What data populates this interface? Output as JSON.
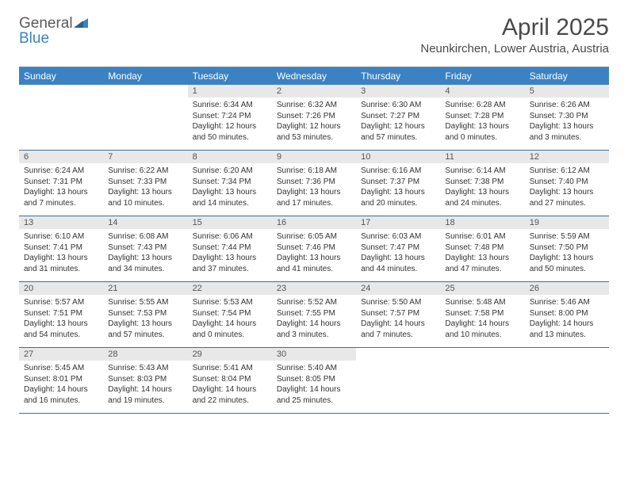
{
  "logo": {
    "text_dark": "General",
    "text_blue": "Blue"
  },
  "title": "April 2025",
  "location": "Neunkirchen, Lower Austria, Austria",
  "day_headers": [
    "Sunday",
    "Monday",
    "Tuesday",
    "Wednesday",
    "Thursday",
    "Friday",
    "Saturday"
  ],
  "colors": {
    "header_bg": "#3b82c4",
    "header_text": "#ffffff",
    "daynum_bg": "#e8e8e8",
    "week_border": "#3b6fa0",
    "body_text": "#333333"
  },
  "weeks": [
    [
      {
        "n": "",
        "empty": true
      },
      {
        "n": "",
        "empty": true
      },
      {
        "n": "1",
        "sunrise": "Sunrise: 6:34 AM",
        "sunset": "Sunset: 7:24 PM",
        "daylight": "Daylight: 12 hours and 50 minutes."
      },
      {
        "n": "2",
        "sunrise": "Sunrise: 6:32 AM",
        "sunset": "Sunset: 7:26 PM",
        "daylight": "Daylight: 12 hours and 53 minutes."
      },
      {
        "n": "3",
        "sunrise": "Sunrise: 6:30 AM",
        "sunset": "Sunset: 7:27 PM",
        "daylight": "Daylight: 12 hours and 57 minutes."
      },
      {
        "n": "4",
        "sunrise": "Sunrise: 6:28 AM",
        "sunset": "Sunset: 7:28 PM",
        "daylight": "Daylight: 13 hours and 0 minutes."
      },
      {
        "n": "5",
        "sunrise": "Sunrise: 6:26 AM",
        "sunset": "Sunset: 7:30 PM",
        "daylight": "Daylight: 13 hours and 3 minutes."
      }
    ],
    [
      {
        "n": "6",
        "sunrise": "Sunrise: 6:24 AM",
        "sunset": "Sunset: 7:31 PM",
        "daylight": "Daylight: 13 hours and 7 minutes."
      },
      {
        "n": "7",
        "sunrise": "Sunrise: 6:22 AM",
        "sunset": "Sunset: 7:33 PM",
        "daylight": "Daylight: 13 hours and 10 minutes."
      },
      {
        "n": "8",
        "sunrise": "Sunrise: 6:20 AM",
        "sunset": "Sunset: 7:34 PM",
        "daylight": "Daylight: 13 hours and 14 minutes."
      },
      {
        "n": "9",
        "sunrise": "Sunrise: 6:18 AM",
        "sunset": "Sunset: 7:36 PM",
        "daylight": "Daylight: 13 hours and 17 minutes."
      },
      {
        "n": "10",
        "sunrise": "Sunrise: 6:16 AM",
        "sunset": "Sunset: 7:37 PM",
        "daylight": "Daylight: 13 hours and 20 minutes."
      },
      {
        "n": "11",
        "sunrise": "Sunrise: 6:14 AM",
        "sunset": "Sunset: 7:38 PM",
        "daylight": "Daylight: 13 hours and 24 minutes."
      },
      {
        "n": "12",
        "sunrise": "Sunrise: 6:12 AM",
        "sunset": "Sunset: 7:40 PM",
        "daylight": "Daylight: 13 hours and 27 minutes."
      }
    ],
    [
      {
        "n": "13",
        "sunrise": "Sunrise: 6:10 AM",
        "sunset": "Sunset: 7:41 PM",
        "daylight": "Daylight: 13 hours and 31 minutes."
      },
      {
        "n": "14",
        "sunrise": "Sunrise: 6:08 AM",
        "sunset": "Sunset: 7:43 PM",
        "daylight": "Daylight: 13 hours and 34 minutes."
      },
      {
        "n": "15",
        "sunrise": "Sunrise: 6:06 AM",
        "sunset": "Sunset: 7:44 PM",
        "daylight": "Daylight: 13 hours and 37 minutes."
      },
      {
        "n": "16",
        "sunrise": "Sunrise: 6:05 AM",
        "sunset": "Sunset: 7:46 PM",
        "daylight": "Daylight: 13 hours and 41 minutes."
      },
      {
        "n": "17",
        "sunrise": "Sunrise: 6:03 AM",
        "sunset": "Sunset: 7:47 PM",
        "daylight": "Daylight: 13 hours and 44 minutes."
      },
      {
        "n": "18",
        "sunrise": "Sunrise: 6:01 AM",
        "sunset": "Sunset: 7:48 PM",
        "daylight": "Daylight: 13 hours and 47 minutes."
      },
      {
        "n": "19",
        "sunrise": "Sunrise: 5:59 AM",
        "sunset": "Sunset: 7:50 PM",
        "daylight": "Daylight: 13 hours and 50 minutes."
      }
    ],
    [
      {
        "n": "20",
        "sunrise": "Sunrise: 5:57 AM",
        "sunset": "Sunset: 7:51 PM",
        "daylight": "Daylight: 13 hours and 54 minutes."
      },
      {
        "n": "21",
        "sunrise": "Sunrise: 5:55 AM",
        "sunset": "Sunset: 7:53 PM",
        "daylight": "Daylight: 13 hours and 57 minutes."
      },
      {
        "n": "22",
        "sunrise": "Sunrise: 5:53 AM",
        "sunset": "Sunset: 7:54 PM",
        "daylight": "Daylight: 14 hours and 0 minutes."
      },
      {
        "n": "23",
        "sunrise": "Sunrise: 5:52 AM",
        "sunset": "Sunset: 7:55 PM",
        "daylight": "Daylight: 14 hours and 3 minutes."
      },
      {
        "n": "24",
        "sunrise": "Sunrise: 5:50 AM",
        "sunset": "Sunset: 7:57 PM",
        "daylight": "Daylight: 14 hours and 7 minutes."
      },
      {
        "n": "25",
        "sunrise": "Sunrise: 5:48 AM",
        "sunset": "Sunset: 7:58 PM",
        "daylight": "Daylight: 14 hours and 10 minutes."
      },
      {
        "n": "26",
        "sunrise": "Sunrise: 5:46 AM",
        "sunset": "Sunset: 8:00 PM",
        "daylight": "Daylight: 14 hours and 13 minutes."
      }
    ],
    [
      {
        "n": "27",
        "sunrise": "Sunrise: 5:45 AM",
        "sunset": "Sunset: 8:01 PM",
        "daylight": "Daylight: 14 hours and 16 minutes."
      },
      {
        "n": "28",
        "sunrise": "Sunrise: 5:43 AM",
        "sunset": "Sunset: 8:03 PM",
        "daylight": "Daylight: 14 hours and 19 minutes."
      },
      {
        "n": "29",
        "sunrise": "Sunrise: 5:41 AM",
        "sunset": "Sunset: 8:04 PM",
        "daylight": "Daylight: 14 hours and 22 minutes."
      },
      {
        "n": "30",
        "sunrise": "Sunrise: 5:40 AM",
        "sunset": "Sunset: 8:05 PM",
        "daylight": "Daylight: 14 hours and 25 minutes."
      },
      {
        "n": "",
        "empty": true
      },
      {
        "n": "",
        "empty": true
      },
      {
        "n": "",
        "empty": true
      }
    ]
  ]
}
